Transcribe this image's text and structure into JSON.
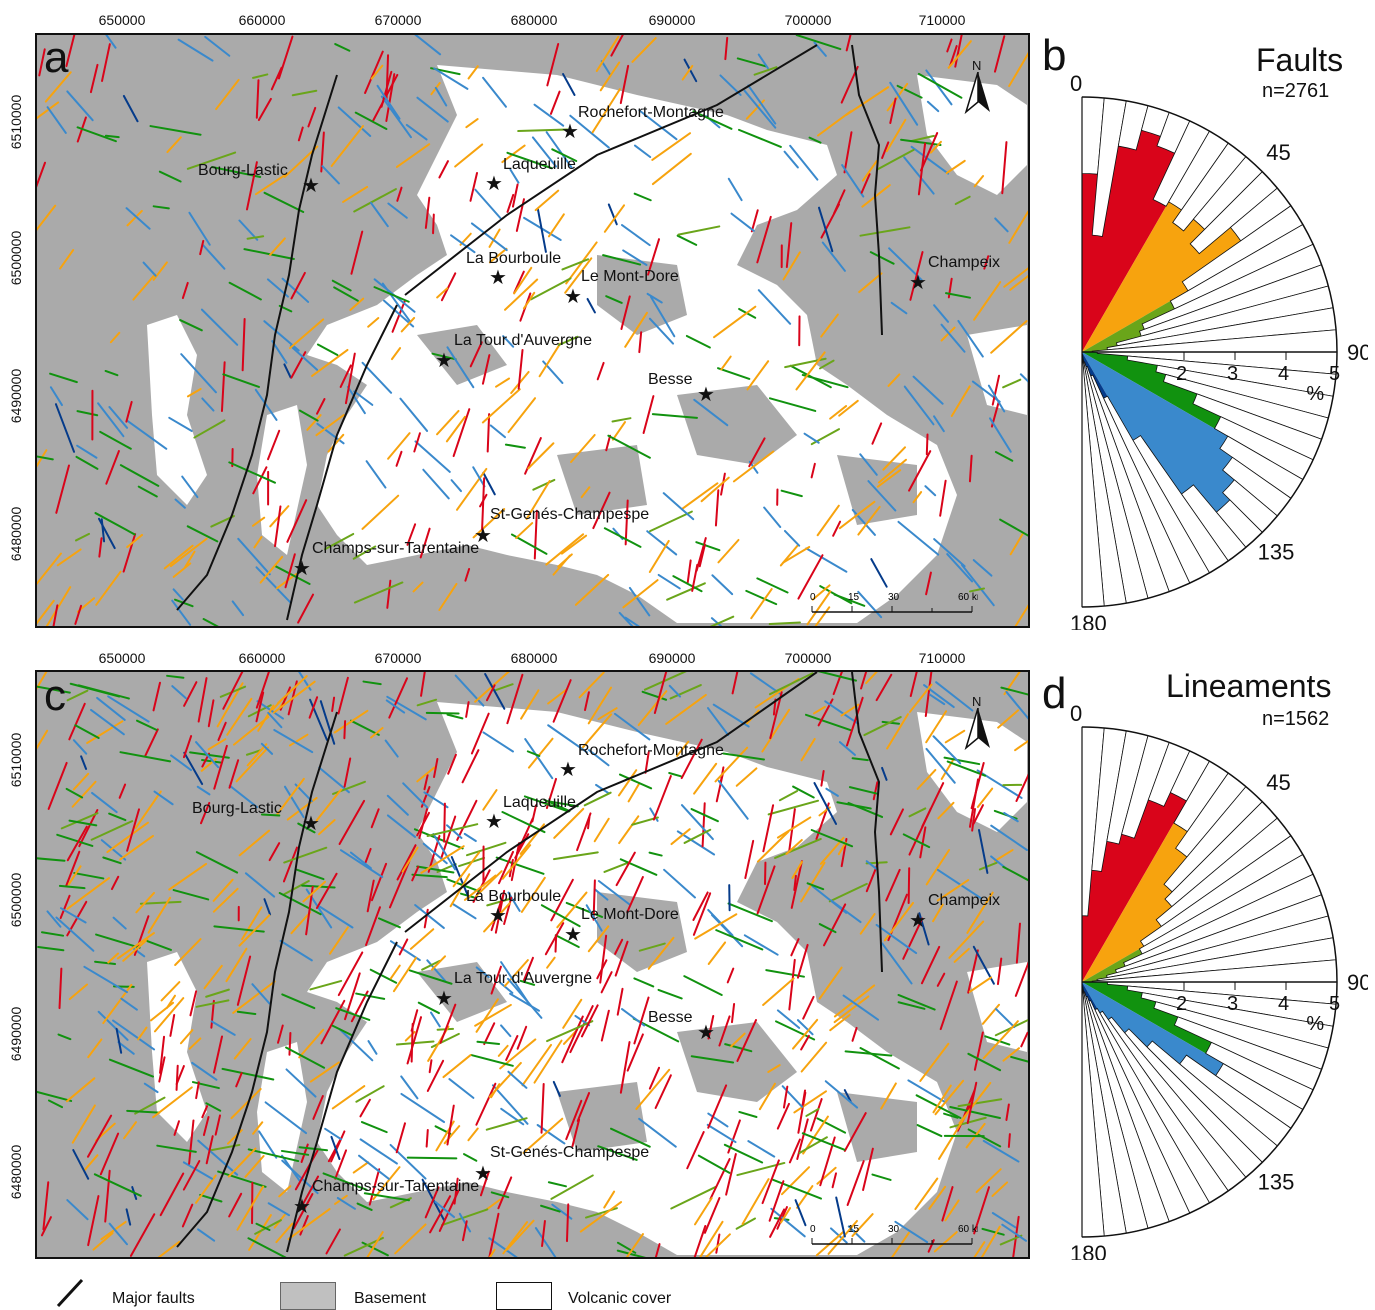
{
  "colors": {
    "basement": "#aaaaaa",
    "volcanic": "#ffffff",
    "major_faults": "#111111",
    "sector_0_30": "#d9041a",
    "sector_30_60": "#f7a30e",
    "sector_60_90": "#6aa51a",
    "sector_90_120": "#11920f",
    "sector_120_150": "#3a89cc",
    "sector_150_180": "#053b8a"
  },
  "x_ticks": [
    "650000",
    "660000",
    "670000",
    "680000",
    "690000",
    "700000",
    "710000"
  ],
  "y_ticks": [
    "6510000",
    "6500000",
    "6490000",
    "6480000"
  ],
  "north_label": "N",
  "scale_bar": [
    "0",
    "15",
    "30",
    "60 km"
  ],
  "towns": [
    "Rochefort-Montagne",
    "Laqueuille",
    "Bourg-Lastic",
    "La Bourboule",
    "Le Mont-Dore",
    "Champeix",
    "La Tour d'Auvergne",
    "Besse",
    "St-Genés-Champespe",
    "Champs-sur-Tarentaine"
  ],
  "panels": {
    "a": {
      "letter": "a",
      "icon": "star-icon"
    },
    "b": {
      "letter": "b",
      "title": "Faults",
      "count": "n=2761"
    },
    "c": {
      "letter": "c",
      "icon": "star-icon"
    },
    "d": {
      "letter": "d",
      "title": "Lineaments",
      "count": "n=1562"
    }
  },
  "rose": {
    "angle_labels": [
      "0",
      "45",
      "90",
      "135",
      "180"
    ],
    "radial_labels": [
      "2",
      "3",
      "4",
      "5"
    ],
    "unit": "%"
  },
  "chart_data": [
    {
      "type": "rose",
      "title": "Faults",
      "n": 2761,
      "angle_range": [
        0,
        180
      ],
      "radial_max": 5,
      "unit": "%",
      "sectors": [
        {
          "from": 0,
          "to": 30,
          "color": "#d9041a"
        },
        {
          "from": 30,
          "to": 60,
          "color": "#f7a30e"
        },
        {
          "from": 60,
          "to": 90,
          "color": "#6aa51a"
        },
        {
          "from": 90,
          "to": 120,
          "color": "#11920f"
        },
        {
          "from": 120,
          "to": 150,
          "color": "#3a89cc"
        },
        {
          "from": 150,
          "to": 180,
          "color": "#053b8a"
        }
      ],
      "bins_5deg_percent": [
        3.5,
        2.3,
        4.1,
        4.5,
        4.3,
        3.3,
        3.4,
        3.1,
        3.4,
        3.0,
        3.8,
        2.4,
        2.0,
        1.3,
        1.2,
        0.7,
        0.5,
        0.2,
        0.3,
        0.9,
        1.5,
        1.7,
        2.4,
        3.0,
        3.3,
        3.6,
        3.9,
        4.1,
        3.4,
        2.0,
        1.0,
        0.5,
        0.3,
        0.2,
        0.05,
        0.05
      ]
    },
    {
      "type": "rose",
      "title": "Lineaments",
      "n": 1562,
      "angle_range": [
        0,
        180
      ],
      "radial_max": 5,
      "unit": "%",
      "sectors": [
        {
          "from": 0,
          "to": 30,
          "color": "#d9041a"
        },
        {
          "from": 30,
          "to": 60,
          "color": "#f7a30e"
        },
        {
          "from": 60,
          "to": 90,
          "color": "#6aa51a"
        },
        {
          "from": 90,
          "to": 120,
          "color": "#11920f"
        },
        {
          "from": 120,
          "to": 150,
          "color": "#3a89cc"
        },
        {
          "from": 150,
          "to": 180,
          "color": "#053b8a"
        }
      ],
      "bins_5deg_percent": [
        1.3,
        2.2,
        2.8,
        3.0,
        3.8,
        4.1,
        3.6,
        3.2,
        2.5,
        2.3,
        1.9,
        1.4,
        1.3,
        0.9,
        0.7,
        0.5,
        0.3,
        0.2,
        0.5,
        0.9,
        1.2,
        1.5,
        2.0,
        2.8,
        3.2,
        2.5,
        1.8,
        1.3,
        0.9,
        0.7,
        0.6,
        0.4,
        0.3,
        0.2,
        0.1,
        0.05
      ]
    }
  ],
  "legend": {
    "major_faults": "Major faults",
    "basement": "Basement",
    "volcanic": "Volcanic cover"
  }
}
